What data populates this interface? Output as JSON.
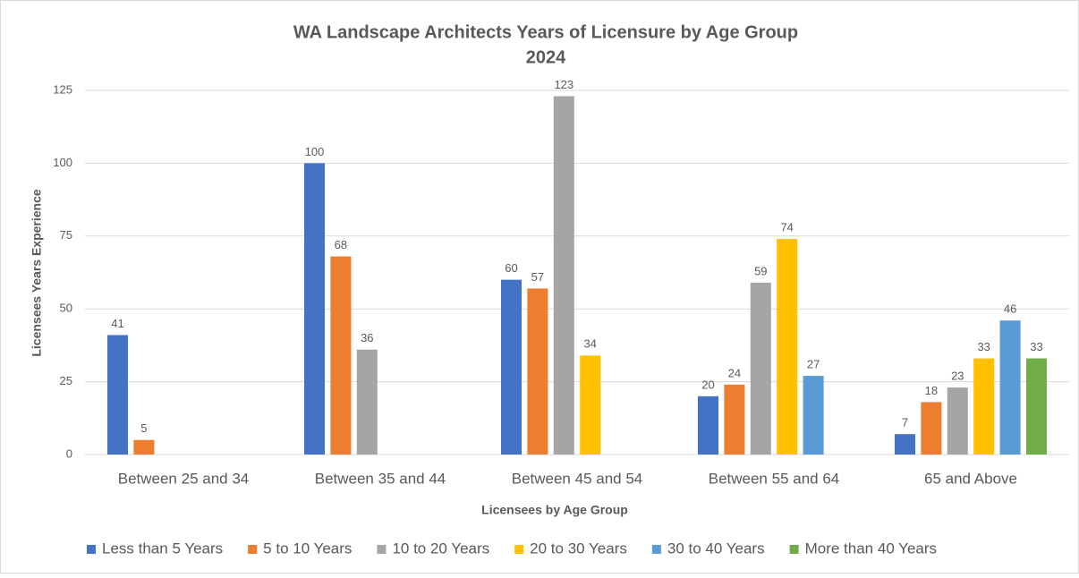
{
  "chart_data": {
    "type": "bar",
    "title": "WA Landscape Architects Years of Licensure by Age Group",
    "subtitle": "2024",
    "x_label": "Licensees by Age Group",
    "y_label": "Licensees Years Experience",
    "categories": [
      "Between 25 and 34",
      "Between 35 and 44",
      "Between 45 and 54",
      "Between 55 and 64",
      "65 and Above"
    ],
    "series": [
      {
        "name": "Less than 5 Years",
        "color": "#4472c4",
        "values": [
          41,
          100,
          60,
          20,
          7
        ]
      },
      {
        "name": "5 to 10 Years",
        "color": "#ed7d31",
        "values": [
          5,
          68,
          57,
          24,
          18
        ]
      },
      {
        "name": "10 to 20 Years",
        "color": "#a5a5a5",
        "values": [
          null,
          36,
          123,
          59,
          23
        ]
      },
      {
        "name": "20 to 30 Years",
        "color": "#ffc000",
        "values": [
          null,
          null,
          34,
          74,
          33
        ]
      },
      {
        "name": "30 to 40 Years",
        "color": "#5b9bd5",
        "values": [
          null,
          null,
          null,
          27,
          46
        ]
      },
      {
        "name": "More than 40 Years",
        "color": "#70ad47",
        "values": [
          null,
          null,
          null,
          null,
          33
        ]
      }
    ],
    "ylim": [
      0,
      125
    ],
    "yticks": [
      0,
      25,
      50,
      75,
      100,
      125
    ],
    "grid": true,
    "legend": "bottom"
  }
}
